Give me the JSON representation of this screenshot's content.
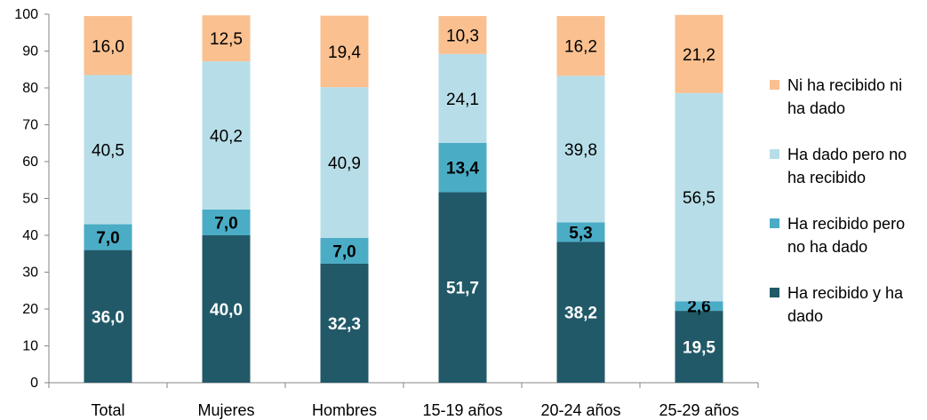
{
  "chart_data": {
    "type": "bar",
    "stacked": true,
    "percent_stacked": true,
    "categories": [
      "Total",
      "Mujeres",
      "Hombres",
      "15-19 años",
      "20-24 años",
      "25-29 años"
    ],
    "series": [
      {
        "name": "Ha recibido y ha dado",
        "values": [
          36.0,
          40.0,
          32.3,
          51.7,
          38.2,
          19.5
        ],
        "labels": [
          "36,0",
          "40,0",
          "32,3",
          "51,7",
          "38,2",
          "19,5"
        ],
        "color": "#215968",
        "label_color": "#ffffff",
        "label_bold": true
      },
      {
        "name": "Ha recibido pero no ha dado",
        "values": [
          7.0,
          7.0,
          7.0,
          13.4,
          5.3,
          2.6
        ],
        "labels": [
          "7,0",
          "7,0",
          "7,0",
          "13,4",
          "5,3",
          "2,6"
        ],
        "color": "#4BACC6",
        "label_color": "#000000",
        "label_bold": true
      },
      {
        "name": "Ha dado pero no ha recibido",
        "values": [
          40.5,
          40.2,
          40.9,
          24.1,
          39.8,
          56.5
        ],
        "labels": [
          "40,5",
          "40,2",
          "40,9",
          "24,1",
          "39,8",
          "56,5"
        ],
        "color": "#B7DEE8",
        "label_color": "#000000",
        "label_bold": false
      },
      {
        "name": "Ni ha recibido ni ha dado",
        "values": [
          16.0,
          12.5,
          19.4,
          10.3,
          16.2,
          21.2
        ],
        "labels": [
          "16,0",
          "12,5",
          "19,4",
          "10,3",
          "16,2",
          "21,2"
        ],
        "color": "#FAC090",
        "label_color": "#000000",
        "label_bold": false
      }
    ],
    "legend_order": [
      {
        "lines": [
          "Ni ha recibido ni",
          "ha dado"
        ],
        "color": "#FAC090"
      },
      {
        "lines": [
          "Ha dado pero no",
          "ha recibido"
        ],
        "color": "#B7DEE8"
      },
      {
        "lines": [
          "Ha recibido pero",
          "no ha dado"
        ],
        "color": "#4BACC6"
      },
      {
        "lines": [
          "Ha recibido y ha",
          "dado"
        ],
        "color": "#215968"
      }
    ],
    "y_ticks": [
      "0",
      "10",
      "20",
      "30",
      "40",
      "50",
      "60",
      "70",
      "80",
      "90",
      "100"
    ],
    "ylim": [
      0,
      100
    ],
    "grid": false,
    "legend_position": "right",
    "title": "",
    "xlabel": "",
    "ylabel": ""
  }
}
